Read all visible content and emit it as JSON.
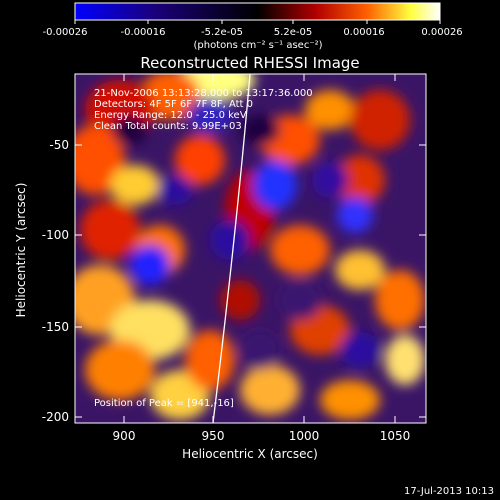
{
  "colorbar": {
    "tick_labels": [
      "-0.00026",
      "-0.00016",
      "-5.2e-05",
      "5.2e-05",
      "0.00016",
      "0.00026"
    ],
    "units_label": "(photons cm⁻² s⁻¹ asec⁻²)",
    "range": [
      -0.00026,
      0.00026
    ],
    "colors": [
      "#0000ff",
      "#1a007a",
      "#000000",
      "#b10000",
      "#ff6000",
      "#ffff40",
      "#ffffff"
    ]
  },
  "plot": {
    "title": "Reconstructed RHESSI Image",
    "xlabel": "Heliocentric X (arcsec)",
    "ylabel": "Heliocentric Y (arcsec)",
    "x_ticks": [
      "900",
      "950",
      "1000",
      "1050"
    ],
    "y_ticks": [
      "-50",
      "-100",
      "-150",
      "-200"
    ],
    "xlim": [
      872,
      1065
    ],
    "ylim": [
      -205,
      -15
    ],
    "info_lines": [
      "21-Nov-2006 13:13:28.000 to 13:17:36.000",
      "Detectors: 4F 5F 6F 7F 8F, Att 0",
      "Energy Range: 12.0 - 25.0 keV",
      "Clean    Total counts: 9.99E+03"
    ],
    "peak_label": "Position of Peak = [941,-16]",
    "peak_position": [
      941,
      -16
    ],
    "limb_color": "#ffffff"
  },
  "footer": {
    "date_label": "17-Jul-2013 10:13"
  }
}
